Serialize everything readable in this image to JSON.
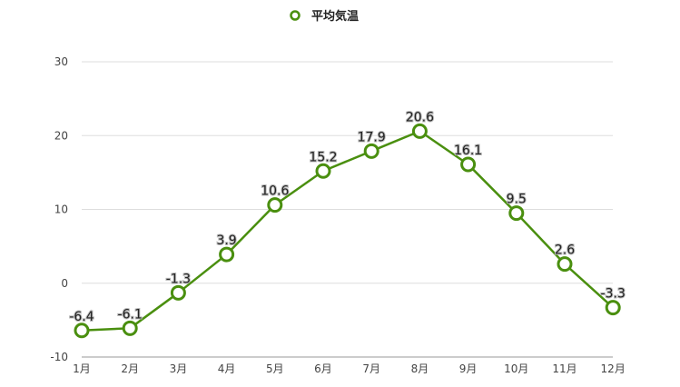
{
  "chart_data": {
    "type": "line",
    "categories": [
      "1月",
      "2月",
      "3月",
      "4月",
      "5月",
      "6月",
      "7月",
      "8月",
      "9月",
      "10月",
      "11月",
      "12月"
    ],
    "series": [
      {
        "name": "平均気温",
        "values": [
          -6.4,
          -6.1,
          -1.3,
          3.9,
          10.6,
          15.2,
          17.9,
          20.6,
          16.1,
          9.5,
          2.6,
          -3.3
        ]
      }
    ],
    "data_labels": [
      "-6.4",
      "-6.1",
      "-1.3",
      "3.9",
      "10.6",
      "15.2",
      "17.9",
      "20.6",
      "16.1",
      "9.5",
      "2.6",
      "-3.3"
    ],
    "title": "",
    "xlabel": "",
    "ylabel": "",
    "ylim": [
      -10,
      30
    ],
    "yticks": [
      -10,
      0,
      10,
      20,
      30
    ],
    "ytick_labels": [
      "-10",
      "0",
      "10",
      "20",
      "30"
    ],
    "grid": true,
    "legend": "top-center",
    "color": "#4a8f0f"
  }
}
